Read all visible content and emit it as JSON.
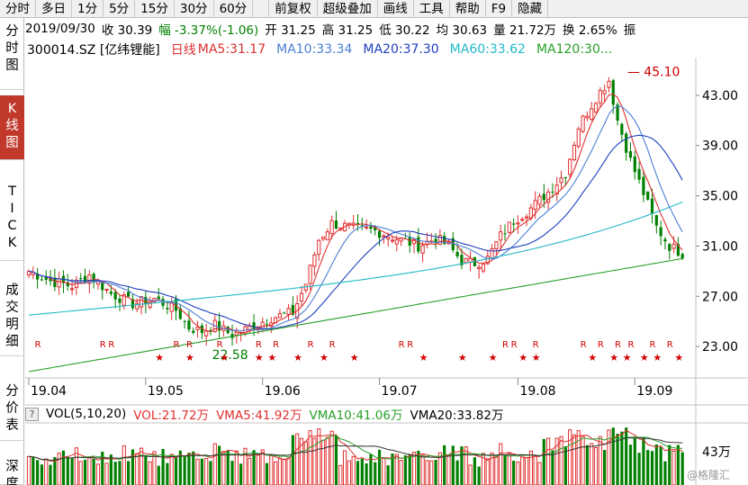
{
  "toolbar": {
    "items": [
      "分时",
      "多日",
      "1分",
      "5分",
      "15分",
      "30分",
      "60分",
      "前复权",
      "超级叠加",
      "画线",
      "工具",
      "帮助",
      "F9",
      "隐藏"
    ]
  },
  "info": {
    "date": "2019/09/30",
    "close": "收 30.39",
    "change": "幅 -3.37%(-1.06)",
    "open": "开 31.25",
    "high": "高 31.25",
    "low": "低 30.22",
    "avg": "均 30.63",
    "volume": "量 21.72万",
    "turnover": "换 2.65%",
    "extra": "振"
  },
  "sidebar": {
    "items": [
      {
        "label": "分时图",
        "active": false
      },
      {
        "label": "K线图",
        "active": true
      },
      {
        "label": "TICK",
        "active": false
      },
      {
        "label": "成交明细",
        "active": false
      },
      {
        "label": "分价表",
        "active": false
      },
      {
        "label": "深度",
        "active": false
      }
    ]
  },
  "legend": {
    "symbol": "300014.SZ [亿纬锂能]",
    "period": "日线",
    "ma5": "MA5:31.17",
    "ma10": "MA10:33.34",
    "ma20": "MA20:37.30",
    "ma60": "MA60:33.62",
    "ma120": "MA120:30..."
  },
  "volume_bar": {
    "q": "?",
    "title": "VOL(5,10,20)",
    "vol": "VOL:21.72万",
    "vma5": "VMA5:41.92万",
    "vma10": "VMA10:41.06万",
    "vma20": "VMA20:33.82万"
  },
  "watermark": "@格隆汇",
  "colors": {
    "up": "#e03030",
    "down": "#008000",
    "ma5": "#e03030",
    "ma10": "#4b7fd6",
    "ma20": "#1f3fbf",
    "ma60": "#22b8c8",
    "ma120": "#28a028"
  },
  "chart_data": {
    "type": "candlestick",
    "y_ticks": [
      "43.00",
      "39.00",
      "35.00",
      "31.00",
      "27.00",
      "23.00"
    ],
    "y_tick_values": [
      43,
      39,
      35,
      31,
      27,
      23
    ],
    "ylim": [
      20.5,
      46
    ],
    "x_ticks": [
      "19.04",
      "19.05",
      "19.06",
      "19.07",
      "19.08",
      "19.09"
    ],
    "annotations": {
      "high": "45.10",
      "low": "22.58"
    },
    "vol_tick": "43万",
    "price_path": [
      {
        "d": 0,
        "p": 29.0
      },
      {
        "d": 5,
        "p": 28.2
      },
      {
        "d": 10,
        "p": 27.8
      },
      {
        "d": 14,
        "p": 28.7
      },
      {
        "d": 19,
        "p": 27.2
      },
      {
        "d": 24,
        "p": 26.4
      },
      {
        "d": 29,
        "p": 26.8
      },
      {
        "d": 34,
        "p": 25.9
      },
      {
        "d": 37,
        "p": 24.5
      },
      {
        "d": 40,
        "p": 24.2
      },
      {
        "d": 43,
        "p": 24.7
      },
      {
        "d": 47,
        "p": 23.9
      },
      {
        "d": 51,
        "p": 24.5
      },
      {
        "d": 56,
        "p": 25.3
      },
      {
        "d": 61,
        "p": 25.7
      },
      {
        "d": 64,
        "p": 28.0
      },
      {
        "d": 67,
        "p": 31.5
      },
      {
        "d": 70,
        "p": 32.8
      },
      {
        "d": 75,
        "p": 32.4
      },
      {
        "d": 80,
        "p": 32.2
      },
      {
        "d": 85,
        "p": 31.6
      },
      {
        "d": 90,
        "p": 31.0
      },
      {
        "d": 94,
        "p": 31.6
      },
      {
        "d": 97,
        "p": 31.0
      },
      {
        "d": 100,
        "p": 29.8
      },
      {
        "d": 103,
        "p": 29.6
      },
      {
        "d": 106,
        "p": 30.0
      },
      {
        "d": 109,
        "p": 31.8
      },
      {
        "d": 112,
        "p": 33.0
      },
      {
        "d": 116,
        "p": 34.0
      },
      {
        "d": 120,
        "p": 35.3
      },
      {
        "d": 124,
        "p": 36.8
      },
      {
        "d": 127,
        "p": 40.5
      },
      {
        "d": 131,
        "p": 42.8
      },
      {
        "d": 134,
        "p": 44.2
      },
      {
        "d": 136,
        "p": 41.0
      },
      {
        "d": 139,
        "p": 37.8
      },
      {
        "d": 142,
        "p": 35.2
      },
      {
        "d": 145,
        "p": 32.5
      },
      {
        "d": 148,
        "p": 31.0
      },
      {
        "d": 151,
        "p": 30.4
      }
    ],
    "x_tick_days": [
      0,
      27,
      54,
      81,
      113,
      140
    ],
    "ma10_end": 33.34,
    "ma20_end": 37.3,
    "ma60_end": 33.62,
    "ma120_end": 30.0
  }
}
